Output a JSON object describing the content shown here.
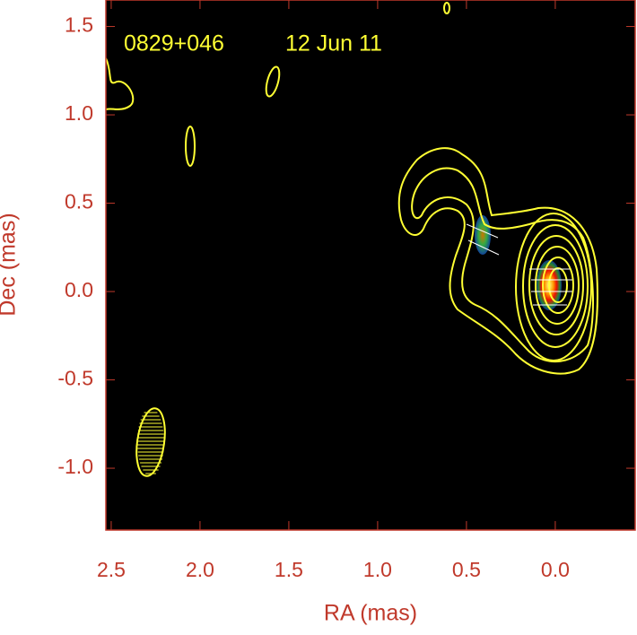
{
  "chart_data": {
    "type": "image",
    "annotations": [
      "0829+046",
      "12 Jun 11"
    ],
    "xlabel": "RA (mas)",
    "ylabel": "Dec (mas)",
    "xlim": [
      2.53,
      -0.45
    ],
    "ylim": [
      -1.35,
      1.65
    ],
    "xticks": [
      2.5,
      {
        "value": 2,
        "label": "2.0"
      },
      1.5,
      {
        "value": 1,
        "label": "1.0"
      },
      0.5,
      {
        "value": 0,
        "label": "0.0"
      }
    ],
    "yticks": [
      {
        "value": -1,
        "label": "-1.0"
      },
      -0.5,
      {
        "value": 0,
        "label": "0.0"
      },
      0.5,
      {
        "value": 1,
        "label": "1.0"
      },
      1.5
    ],
    "contour_color": "#ffff33",
    "axis_color": "#c0392b"
  }
}
